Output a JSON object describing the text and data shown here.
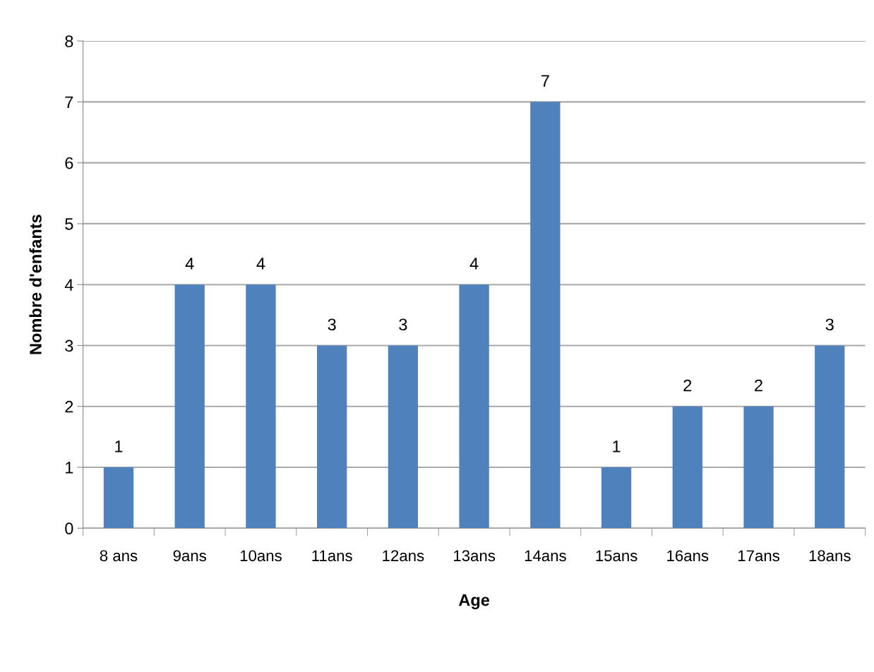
{
  "chart_data": {
    "type": "bar",
    "xlabel": "Age",
    "ylabel": "Nombre d'enfants",
    "categories": [
      "8 ans",
      "9ans",
      "10ans",
      "11ans",
      "12ans",
      "13ans",
      "14ans",
      "15ans",
      "16ans",
      "17ans",
      "18ans"
    ],
    "values": [
      1,
      4,
      4,
      3,
      3,
      4,
      7,
      1,
      2,
      2,
      3
    ],
    "color": "#4f81bd",
    "ylim": [
      0,
      8
    ],
    "yticks": [
      0,
      1,
      2,
      3,
      4,
      5,
      6,
      7,
      8
    ],
    "grid": "y",
    "data_labels": true
  }
}
